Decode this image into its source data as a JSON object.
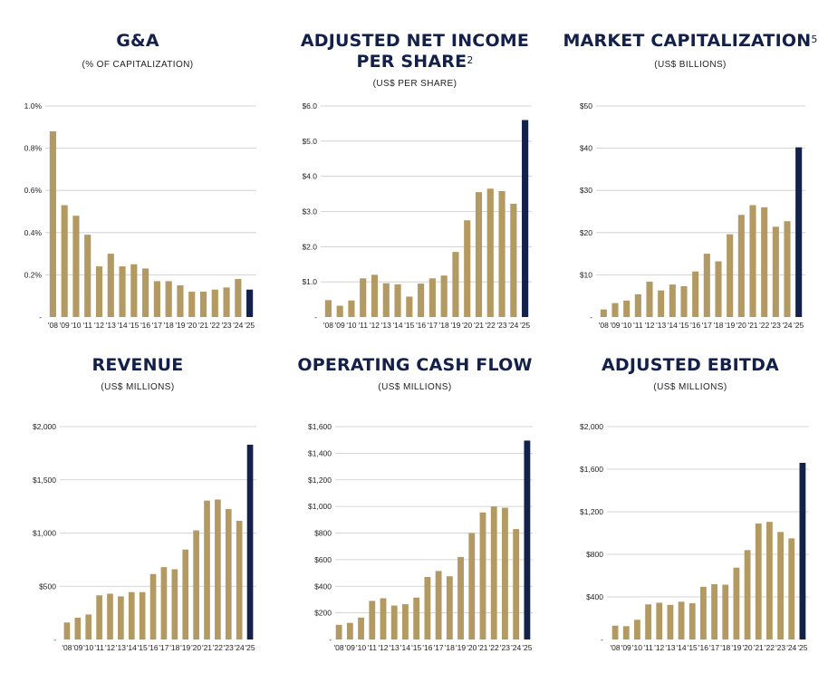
{
  "colors": {
    "title": "#12204a",
    "bar": "#b39a63",
    "highlight": "#14224a",
    "grid": "#c9c9c9"
  },
  "chart_data": [
    {
      "type": "bar",
      "title": "G&A",
      "title_sup": "",
      "subtitle": "(% OF CAPITALIZATION)",
      "categories": [
        "'08",
        "'09",
        "'10",
        "'11",
        "'12",
        "'13",
        "'14",
        "'15",
        "'16",
        "'17",
        "'18",
        "'19",
        "'20",
        "'21",
        "'22",
        "'23",
        "'24",
        "'25"
      ],
      "values": [
        0.88,
        0.53,
        0.48,
        0.39,
        0.24,
        0.3,
        0.24,
        0.25,
        0.23,
        0.17,
        0.17,
        0.15,
        0.12,
        0.12,
        0.13,
        0.14,
        0.18,
        0.13
      ],
      "highlight_index": 17,
      "ylim": [
        0,
        1.0
      ],
      "yticks": [
        0,
        0.2,
        0.4,
        0.6,
        0.8,
        1.0
      ],
      "ytick_labels": [
        "-",
        "0.2%",
        "0.4%",
        "0.6%",
        "0.8%",
        "1.0%"
      ],
      "grid": true
    },
    {
      "type": "bar",
      "title": "ADJUSTED NET INCOME PER SHARE",
      "title_line1": "ADJUSTED NET INCOME",
      "title_line2": "PER SHARE",
      "title_sup": "2",
      "subtitle": "(US$ PER SHARE)",
      "categories": [
        "'08",
        "'09",
        "'10",
        "'11",
        "'12",
        "'13",
        "'14",
        "'15",
        "'16",
        "'17",
        "'18",
        "'19",
        "'20",
        "'21",
        "'22",
        "'23",
        "'24",
        "'25"
      ],
      "values": [
        0.48,
        0.32,
        0.47,
        1.1,
        1.2,
        0.96,
        0.93,
        0.58,
        0.95,
        1.1,
        1.18,
        1.85,
        2.75,
        3.55,
        3.65,
        3.58,
        3.22,
        5.6
      ],
      "highlight_index": 17,
      "ylim": [
        0,
        6.0
      ],
      "yticks": [
        0,
        1,
        2,
        3,
        4,
        5,
        6
      ],
      "ytick_labels": [
        "-",
        "$1.0",
        "$2.0",
        "$3.0",
        "$4.0",
        "$5.0",
        "$6.0"
      ],
      "grid": true
    },
    {
      "type": "bar",
      "title": "MARKET CAPITALIZATION",
      "title_sup": "5",
      "subtitle": "(US$ BILLIONS)",
      "categories": [
        "'08",
        "'09",
        "'10",
        "'11",
        "'12",
        "'13",
        "'14",
        "'15",
        "'16",
        "'17",
        "'18",
        "'19",
        "'20",
        "'21",
        "'22",
        "'23",
        "'24",
        "'25"
      ],
      "values": [
        1.8,
        3.3,
        3.9,
        5.4,
        8.4,
        6.3,
        7.7,
        7.3,
        10.8,
        15.0,
        13.2,
        19.6,
        24.2,
        26.5,
        26.0,
        21.4,
        22.7,
        40.2
      ],
      "highlight_index": 17,
      "ylim": [
        0,
        50
      ],
      "yticks": [
        0,
        10,
        20,
        30,
        40,
        50
      ],
      "ytick_labels": [
        "-",
        "$10",
        "$20",
        "$30",
        "$40",
        "$50"
      ],
      "grid": true
    },
    {
      "type": "bar",
      "title": "REVENUE",
      "title_sup": "",
      "subtitle": "(US$ MILLIONS)",
      "categories": [
        "'08",
        "'09",
        "'10",
        "'11",
        "'12",
        "'13",
        "'14",
        "'15",
        "'16",
        "'17",
        "'18",
        "'19",
        "'20",
        "'21",
        "'22",
        "'23",
        "'24",
        "'25"
      ],
      "values": [
        160,
        205,
        235,
        415,
        430,
        405,
        445,
        445,
        615,
        680,
        660,
        845,
        1025,
        1305,
        1315,
        1225,
        1115,
        1830
      ],
      "highlight_index": 17,
      "ylim": [
        0,
        2000
      ],
      "yticks": [
        0,
        500,
        1000,
        1500,
        2000
      ],
      "ytick_labels": [
        "-",
        "$500",
        "$1,000",
        "$1,500",
        "$2,000"
      ],
      "grid": true
    },
    {
      "type": "bar",
      "title": "OPERATING CASH FLOW",
      "title_sup": "",
      "subtitle": "(US$ MILLIONS)",
      "categories": [
        "'08",
        "'09",
        "'10",
        "'11",
        "'12",
        "'13",
        "'14",
        "'15",
        "'16",
        "'17",
        "'18",
        "'19",
        "'20",
        "'21",
        "'22",
        "'23",
        "'24",
        "'25"
      ],
      "values": [
        110,
        125,
        165,
        290,
        310,
        255,
        265,
        315,
        470,
        515,
        475,
        620,
        800,
        955,
        1000,
        990,
        830,
        1495
      ],
      "highlight_index": 17,
      "ylim": [
        0,
        1600
      ],
      "yticks": [
        0,
        200,
        400,
        600,
        800,
        1000,
        1200,
        1400,
        1600
      ],
      "ytick_labels": [
        "-",
        "$200",
        "$400",
        "$600",
        "$800",
        "$1,000",
        "$1,200",
        "$1,400",
        "$1,600"
      ],
      "grid": true
    },
    {
      "type": "bar",
      "title": "ADJUSTED EBITDA",
      "title_sup": "",
      "subtitle": "(US$ MILLIONS)",
      "categories": [
        "'08",
        "'09",
        "'10",
        "'11",
        "'12",
        "'13",
        "'14",
        "'15",
        "'16",
        "'17",
        "'18",
        "'19",
        "'20",
        "'21",
        "'22",
        "'23",
        "'24",
        "'25"
      ],
      "values": [
        130,
        125,
        185,
        330,
        345,
        325,
        355,
        340,
        495,
        520,
        515,
        675,
        840,
        1090,
        1105,
        1010,
        950,
        1660
      ],
      "highlight_index": 17,
      "ylim": [
        0,
        2000
      ],
      "yticks": [
        0,
        400,
        800,
        1200,
        1600,
        2000
      ],
      "ytick_labels": [
        "-",
        "$400",
        "$800",
        "$1,200",
        "$1,600",
        "$2,000"
      ],
      "grid": true
    }
  ]
}
